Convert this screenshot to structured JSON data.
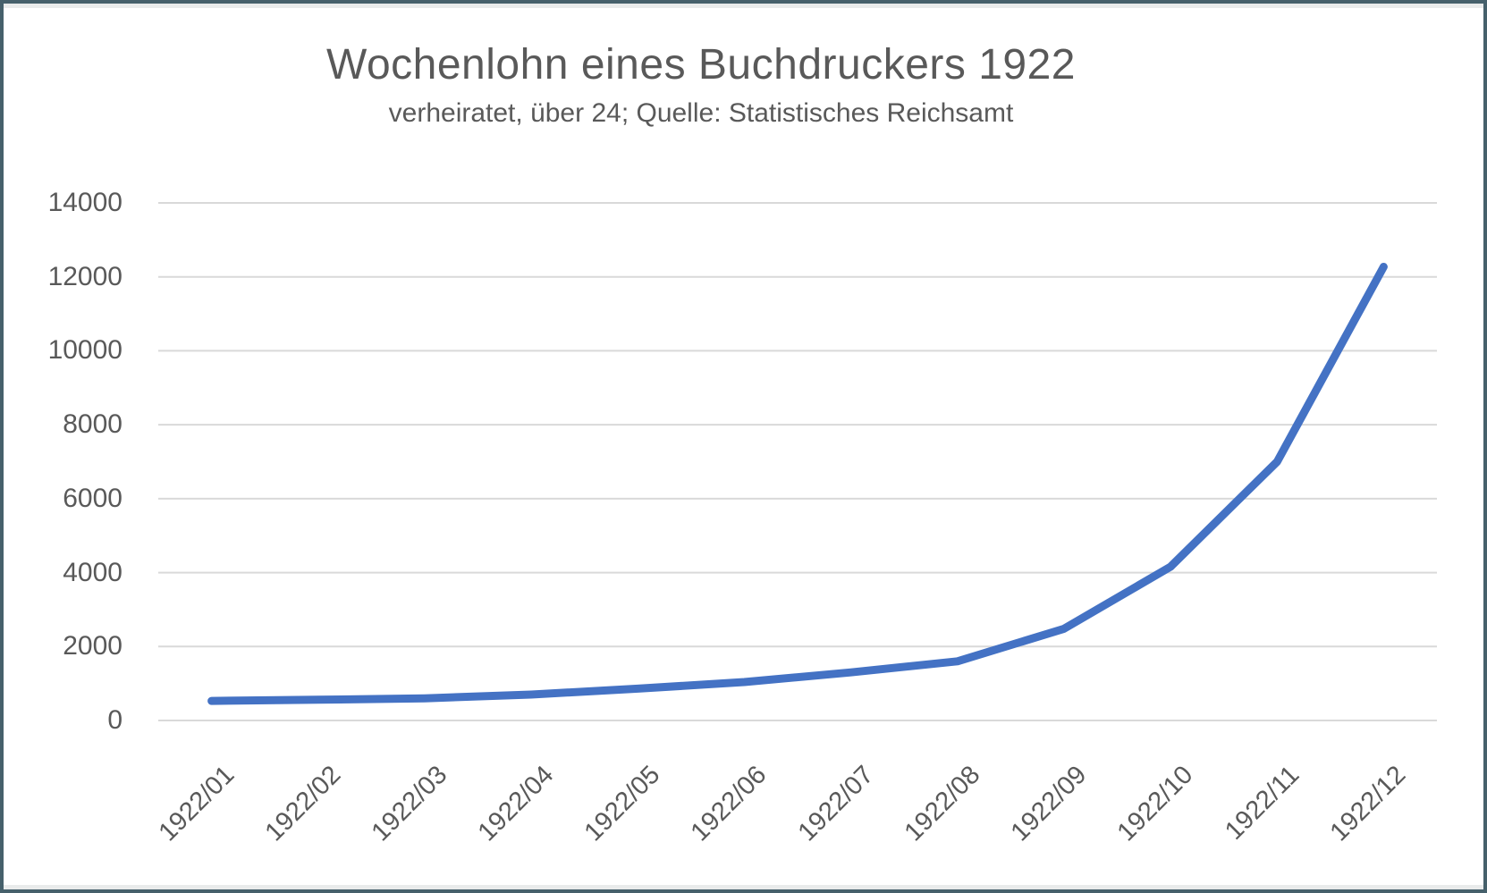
{
  "window": {
    "frame_color": "#46606B",
    "gutter_color": "#E9EBEB",
    "canvas_color": "#FFFFFF"
  },
  "chart_data": {
    "type": "line",
    "title": "Wochenlohn eines Buchdruckers 1922",
    "subtitle": "verheiratet, über 24; Quelle: Statistisches Reichsamt",
    "categories": [
      "1922/01",
      "1922/02",
      "1922/03",
      "1922/04",
      "1922/05",
      "1922/06",
      "1922/07",
      "1922/08",
      "1922/09",
      "1922/10",
      "1922/11",
      "1922/12"
    ],
    "values": [
      530,
      560,
      600,
      700,
      860,
      1040,
      1300,
      1600,
      2480,
      4160,
      7000,
      12270
    ],
    "ylim": [
      0,
      14000
    ],
    "ytick_interval": 2000,
    "yticks": [
      14000,
      12000,
      10000,
      8000,
      6000,
      4000,
      2000,
      0
    ],
    "grid": "horizontal",
    "legend": "none",
    "line_color": "#4472C4",
    "line_width": 9,
    "gridline_color": "#D9D9D9",
    "text_color": "#595959"
  }
}
